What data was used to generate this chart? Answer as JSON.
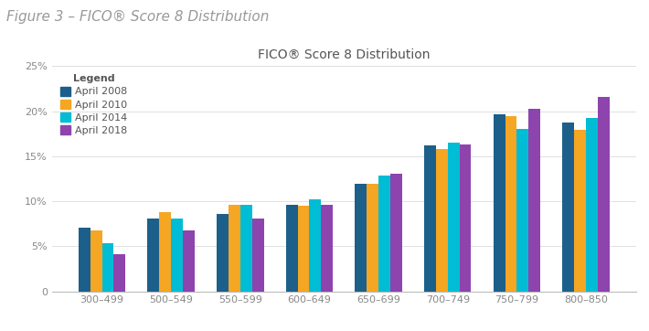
{
  "title": "FICO® Score 8 Distribution",
  "figure_label": "Figure 3 – FICO® Score 8 Distribution",
  "categories": [
    "300–499",
    "500–549",
    "550–599",
    "600–649",
    "650–699",
    "700–749",
    "750–799",
    "800–850"
  ],
  "series": [
    {
      "label": "April 2008",
      "color": "#1c5f8a",
      "values": [
        7.1,
        8.1,
        8.6,
        9.6,
        11.9,
        16.2,
        19.7,
        18.7
      ]
    },
    {
      "label": "April 2010",
      "color": "#f5a623",
      "values": [
        6.8,
        8.8,
        9.6,
        9.5,
        11.9,
        15.8,
        19.5,
        17.9
      ]
    },
    {
      "label": "April 2014",
      "color": "#00bcd4",
      "values": [
        5.3,
        8.1,
        9.6,
        10.2,
        12.9,
        16.5,
        18.0,
        19.3
      ]
    },
    {
      "label": "April 2018",
      "color": "#8e44ad",
      "values": [
        4.1,
        6.8,
        8.1,
        9.6,
        13.1,
        16.3,
        20.3,
        21.6
      ]
    }
  ],
  "ylim": [
    0,
    25
  ],
  "yticks": [
    0,
    5,
    10,
    15,
    20,
    25
  ],
  "ytick_labels": [
    "0",
    "5%",
    "10%",
    "15%",
    "20%",
    "25%"
  ],
  "legend_title": "Legend",
  "background_color": "#ffffff",
  "grid_color": "#e0e0e0",
  "bar_width": 0.17,
  "title_fontsize": 10,
  "figure_label_fontsize": 11,
  "tick_fontsize": 8,
  "legend_fontsize": 8,
  "legend_title_fontsize": 8
}
